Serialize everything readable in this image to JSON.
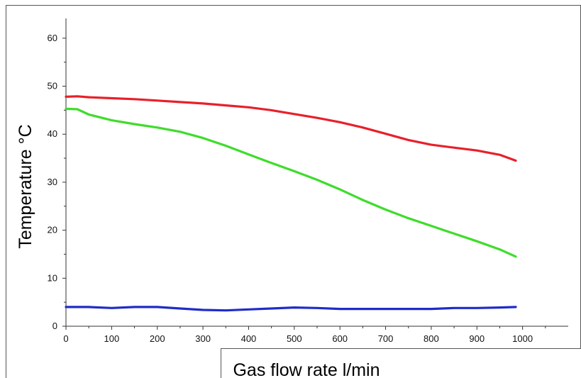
{
  "chart_data": {
    "type": "line",
    "title": "",
    "xlabel": "Gas flow rate l/min",
    "ylabel": "Temperature °C",
    "xlim": [
      0,
      1100
    ],
    "ylim": [
      0,
      65
    ],
    "xticks": [
      0,
      100,
      200,
      300,
      400,
      500,
      600,
      700,
      800,
      900,
      1000
    ],
    "yticks": [
      0,
      10,
      20,
      30,
      40,
      50,
      60
    ],
    "grid": false,
    "legend": "none",
    "series": [
      {
        "color": "#e8202a",
        "x": [
          0,
          25,
          50,
          100,
          150,
          200,
          250,
          300,
          350,
          400,
          450,
          500,
          550,
          600,
          650,
          700,
          750,
          800,
          850,
          900,
          950,
          985
        ],
        "y": [
          47.8,
          47.9,
          47.7,
          47.5,
          47.3,
          47.0,
          46.7,
          46.4,
          46.0,
          45.6,
          45.0,
          44.2,
          43.4,
          42.5,
          41.4,
          40.1,
          38.8,
          37.8,
          37.2,
          36.6,
          35.7,
          34.5
        ]
      },
      {
        "color": "#3fdc2c",
        "x": [
          0,
          25,
          50,
          100,
          150,
          200,
          250,
          300,
          350,
          400,
          450,
          500,
          550,
          600,
          650,
          700,
          750,
          800,
          850,
          900,
          950,
          985
        ],
        "y": [
          45.3,
          45.2,
          44.1,
          42.9,
          42.1,
          41.4,
          40.5,
          39.2,
          37.6,
          35.8,
          34.0,
          32.3,
          30.5,
          28.5,
          26.3,
          24.3,
          22.5,
          20.9,
          19.3,
          17.7,
          16.0,
          14.5
        ]
      },
      {
        "color": "#1f2cc8",
        "x": [
          0,
          50,
          100,
          150,
          200,
          250,
          300,
          350,
          400,
          450,
          500,
          550,
          600,
          650,
          700,
          750,
          800,
          850,
          900,
          950,
          985
        ],
        "y": [
          4.0,
          4.0,
          3.8,
          4.0,
          4.0,
          3.7,
          3.4,
          3.3,
          3.5,
          3.7,
          3.9,
          3.8,
          3.6,
          3.6,
          3.6,
          3.6,
          3.6,
          3.8,
          3.8,
          3.9,
          4.0
        ]
      }
    ]
  }
}
